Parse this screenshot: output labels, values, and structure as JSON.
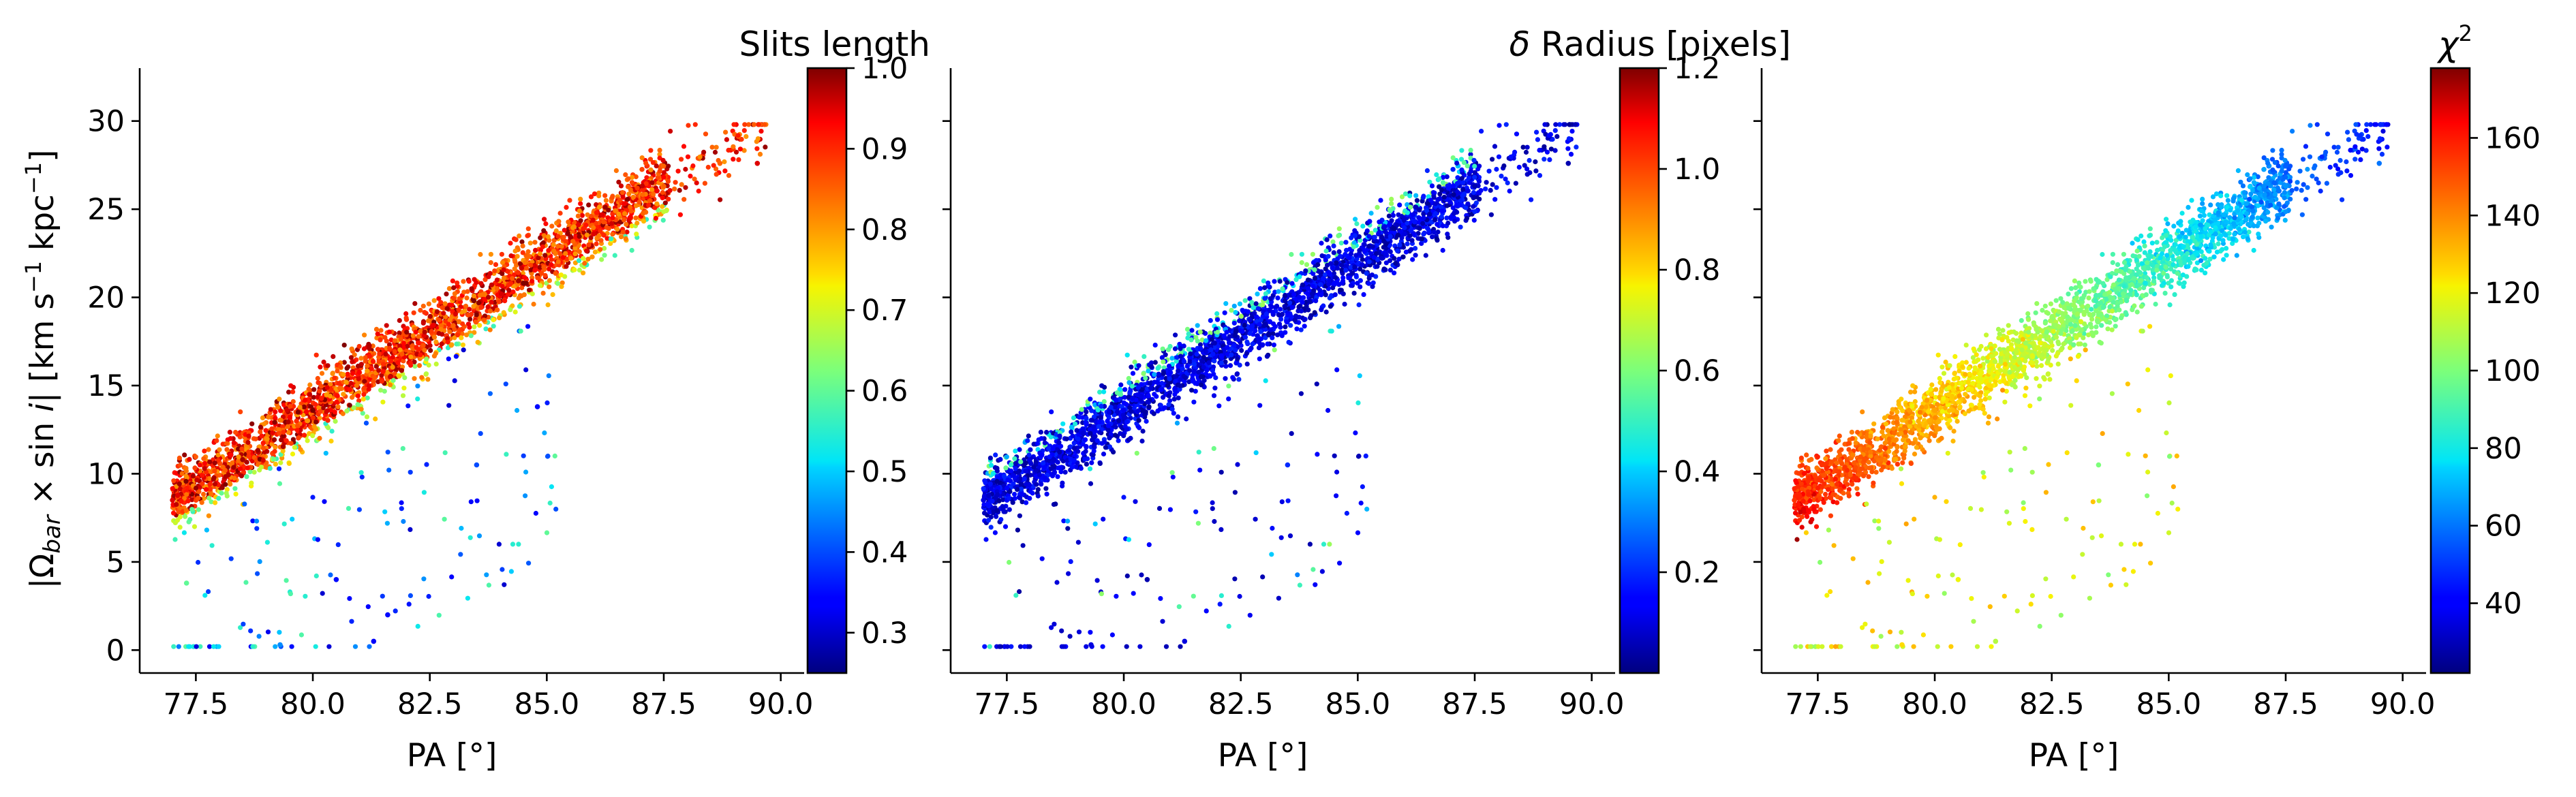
{
  "chart_data": [
    {
      "type": "scatter",
      "xlabel": "PA [°]",
      "ylabel": "|Ω_bar × sin i|   [km s⁻¹ kpc⁻¹]",
      "xlim": [
        76.3,
        90.5
      ],
      "ylim": [
        -1.3,
        33
      ],
      "xticks": [
        "77.5",
        "80.0",
        "82.5",
        "85.0",
        "87.5",
        "90.0"
      ],
      "yticks": [
        "0",
        "5",
        "10",
        "15",
        "20",
        "25",
        "30"
      ],
      "grid": false,
      "colorbar": {
        "title": "Slits length",
        "colormap": "jet",
        "range": [
          0.25,
          1.0
        ],
        "ticks": [
          "0.3",
          "0.4",
          "0.5",
          "0.6",
          "0.7",
          "0.8",
          "0.9",
          "1.0"
        ]
      },
      "trend": "main band: Ω·sin i ≈ 9 at PA 77.5 rising to ≈ 27 at PA 88; sparse scatter below band (PA 77–85, Ω·sin i 0–17); band colour high (0.8–1.0) inside, lower values along lower edge and in outliers",
      "sample_points": [
        [
          77.0,
          8.5,
          0.95
        ],
        [
          78.5,
          10.8,
          0.98
        ],
        [
          80.0,
          13.6,
          1.0
        ],
        [
          81.5,
          15.8,
          0.92
        ],
        [
          83.0,
          18.4,
          0.85
        ],
        [
          84.5,
          20.8,
          1.0
        ],
        [
          86.0,
          23.6,
          0.95
        ],
        [
          87.5,
          26.3,
          0.85
        ],
        [
          88.7,
          27.6,
          0.85
        ],
        [
          89.5,
          27.6,
          0.95
        ],
        [
          79.3,
          0.3,
          0.45
        ],
        [
          80.5,
          4.0,
          0.35
        ],
        [
          81.3,
          0.5,
          0.33
        ],
        [
          81.6,
          2.0,
          0.35
        ],
        [
          83.5,
          10.5,
          0.4
        ],
        [
          84.8,
          13.8,
          0.35
        ],
        [
          77.3,
          3.8,
          0.6
        ]
      ]
    },
    {
      "type": "scatter",
      "xlabel": "PA [°]",
      "ylabel": "",
      "xlim": [
        76.3,
        90.5
      ],
      "ylim": [
        -1.3,
        33
      ],
      "xticks": [
        "77.5",
        "80.0",
        "82.5",
        "85.0",
        "87.5",
        "90.0"
      ],
      "yticks": [],
      "grid": false,
      "colorbar": {
        "title": "δ Radius [pixels]",
        "colormap": "jet",
        "range": [
          0.0,
          1.2
        ],
        "ticks": [
          "0.2",
          "0.4",
          "0.6",
          "0.8",
          "1.0",
          "1.2"
        ]
      },
      "trend": "same band as left panel; colour mostly low (≈0.05–0.2), cyan/green values (0.4–0.6) along upper edge and scattered",
      "sample_points": [
        [
          77.0,
          8.5,
          0.1
        ],
        [
          78.5,
          10.8,
          0.08
        ],
        [
          80.0,
          13.6,
          0.12
        ],
        [
          81.5,
          15.8,
          0.1
        ],
        [
          83.0,
          18.4,
          0.05
        ],
        [
          84.5,
          20.8,
          0.15
        ],
        [
          86.0,
          23.6,
          0.1
        ],
        [
          87.5,
          26.3,
          0.05
        ],
        [
          89.5,
          27.6,
          0.05
        ],
        [
          80.5,
          4.0,
          0.05
        ],
        [
          81.3,
          0.5,
          0.1
        ],
        [
          83.5,
          10.5,
          0.2
        ],
        [
          79.3,
          0.3,
          0.1
        ]
      ]
    },
    {
      "type": "scatter",
      "xlabel": "PA [°]",
      "ylabel": "",
      "xlim": [
        76.3,
        90.5
      ],
      "ylim": [
        -1.3,
        33
      ],
      "xticks": [
        "77.5",
        "80.0",
        "82.5",
        "85.0",
        "87.5",
        "90.0"
      ],
      "yticks": [],
      "grid": false,
      "colorbar": {
        "title": "χ²",
        "colormap": "jet",
        "range": [
          22,
          178
        ],
        "ticks": [
          "40",
          "60",
          "80",
          "100",
          "120",
          "140",
          "160"
        ]
      },
      "trend": "same band; χ² high (≈150–165) at low PA end, decreasing smoothly to ≈60–70 at high PA end; outliers mostly yellow/green (110–130)",
      "sample_points": [
        [
          77.0,
          8.5,
          155
        ],
        [
          78.5,
          10.8,
          150
        ],
        [
          80.0,
          13.6,
          135
        ],
        [
          81.5,
          15.8,
          115
        ],
        [
          83.0,
          18.4,
          95
        ],
        [
          84.5,
          20.8,
          80
        ],
        [
          86.0,
          23.6,
          70
        ],
        [
          87.5,
          26.3,
          65
        ],
        [
          89.5,
          27.6,
          60
        ],
        [
          80.5,
          4.0,
          120
        ],
        [
          81.3,
          0.5,
          110
        ],
        [
          83.5,
          10.5,
          100
        ],
        [
          79.3,
          0.3,
          125
        ]
      ]
    }
  ]
}
